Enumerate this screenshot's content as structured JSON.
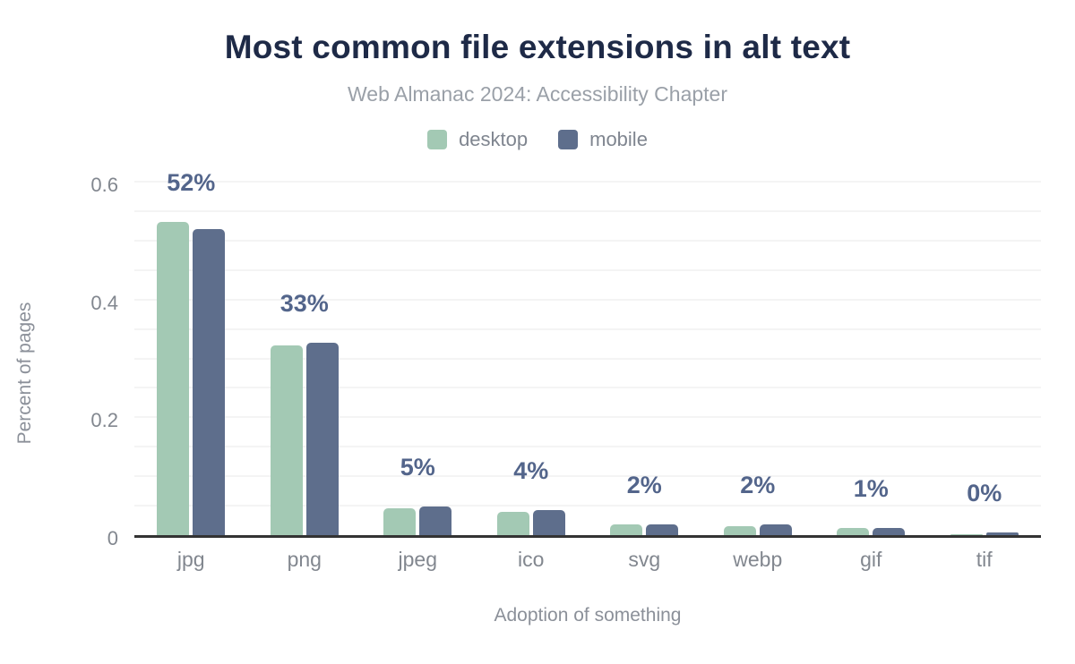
{
  "chart_data": {
    "type": "bar",
    "title": "Most common file extensions in alt text",
    "subtitle": "Web Almanac 2024: Accessibility Chapter",
    "xlabel": "Adoption of something",
    "ylabel": "Percent of pages",
    "categories": [
      "jpg",
      "png",
      "jpeg",
      "ico",
      "svg",
      "webp",
      "gif",
      "tif"
    ],
    "series": [
      {
        "name": "desktop",
        "color": "#a3c9b4",
        "values": [
          0.532,
          0.322,
          0.045,
          0.039,
          0.018,
          0.015,
          0.012,
          0.001
        ]
      },
      {
        "name": "mobile",
        "color": "#5e6e8c",
        "values": [
          0.52,
          0.327,
          0.048,
          0.042,
          0.018,
          0.018,
          0.012,
          0.005
        ]
      }
    ],
    "bar_labels": [
      "52%",
      "33%",
      "5%",
      "4%",
      "2%",
      "2%",
      "1%",
      "0%"
    ],
    "yticks": [
      "0",
      "0.2",
      "0.4",
      "0.6"
    ],
    "ytick_values": [
      0,
      0.2,
      0.4,
      0.6
    ],
    "ylim": [
      0,
      0.6
    ],
    "grid_step": 0.05,
    "grid": true,
    "legend_position": "top"
  },
  "colors": {
    "title": "#1e2a47",
    "subtitle": "#9aa0a8",
    "value_label": "#53658b",
    "axis_text": "#82878f",
    "axis_line": "#333333",
    "gridline": "#f4f4f4",
    "background": "#ffffff",
    "desktop_bar": "#a3c9b4",
    "mobile_bar": "#5e6e8c"
  }
}
